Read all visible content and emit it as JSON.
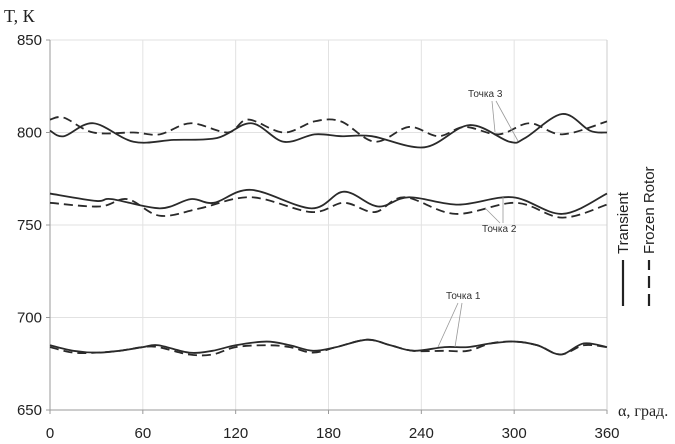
{
  "chart_data": {
    "type": "line",
    "title": "",
    "ylabel": "T, К",
    "xlabel": "α, град.",
    "xlim": [
      0,
      360
    ],
    "ylim": [
      650,
      850
    ],
    "xticks": [
      "0",
      "60",
      "120",
      "180",
      "240",
      "300",
      "360"
    ],
    "yticks": [
      "650",
      "700",
      "750",
      "800",
      "850"
    ],
    "grid": true,
    "legend_position": "right (vertical)",
    "legend": [
      {
        "name": "Transient",
        "style": "solid"
      },
      {
        "name": "Frozen Rotor",
        "style": "dashed"
      }
    ],
    "annotations": [
      "Точка 1",
      "Точка 2",
      "Точка 3"
    ],
    "series": [
      {
        "name": "Transient",
        "group": "Точка 3",
        "x": [
          0,
          9,
          28,
          54,
          80,
          108,
          130,
          151,
          171,
          188,
          208,
          242,
          271,
          297,
          307,
          331,
          349,
          360
        ],
        "y": [
          801,
          798,
          805,
          795,
          796,
          797,
          805,
          795,
          799,
          798,
          798,
          792,
          804,
          795,
          797,
          810,
          801,
          800
        ]
      },
      {
        "name": "Frozen Rotor",
        "group": "Точка 3",
        "x": [
          0,
          9,
          28,
          54,
          71,
          91,
          115,
          128,
          151,
          171,
          188,
          210,
          232,
          251,
          268,
          290,
          310,
          331,
          360
        ],
        "y": [
          807,
          808,
          800,
          800,
          799,
          805,
          800,
          807,
          800,
          806,
          806,
          795,
          803,
          798,
          803,
          799,
          805,
          799,
          806
        ]
      },
      {
        "name": "Transient",
        "group": "Точка 2",
        "x": [
          0,
          30,
          40,
          71,
          91,
          106,
          130,
          169,
          190,
          212,
          232,
          264,
          299,
          331,
          360
        ],
        "y": [
          767,
          763,
          764,
          759,
          764,
          762,
          769,
          759,
          768,
          760,
          765,
          761,
          765,
          756,
          767
        ]
      },
      {
        "name": "Frozen Rotor",
        "group": "Точка 2",
        "x": [
          0,
          32,
          50,
          71,
          97,
          130,
          169,
          190,
          210,
          229,
          262,
          301,
          331,
          360
        ],
        "y": [
          762,
          760,
          764,
          755,
          759,
          765,
          757,
          762,
          757,
          765,
          756,
          762,
          754,
          761
        ]
      },
      {
        "name": "Transient",
        "group": "Точка 1",
        "x": [
          0,
          15,
          30,
          45,
          60,
          70,
          90,
          105,
          120,
          140,
          155,
          170,
          185,
          205,
          220,
          235,
          255,
          270,
          285,
          300,
          315,
          330,
          345,
          360
        ],
        "y": [
          685,
          682,
          681,
          682,
          684,
          685,
          681,
          682,
          685,
          687,
          685,
          682,
          684,
          688,
          685,
          682,
          684,
          684,
          686,
          687,
          685,
          680,
          686,
          684
        ]
      },
      {
        "name": "Frozen Rotor",
        "group": "Точка 1",
        "x": [
          0,
          15,
          30,
          45,
          60,
          70,
          90,
          105,
          120,
          140,
          155,
          170,
          185,
          205,
          220,
          235,
          255,
          270,
          285,
          300,
          315,
          330,
          345,
          360
        ],
        "y": [
          684,
          681,
          681,
          682,
          684,
          684,
          680,
          680,
          684,
          685,
          684,
          681,
          684,
          688,
          685,
          682,
          682,
          682,
          686,
          687,
          685,
          680,
          685,
          684
        ]
      }
    ]
  }
}
